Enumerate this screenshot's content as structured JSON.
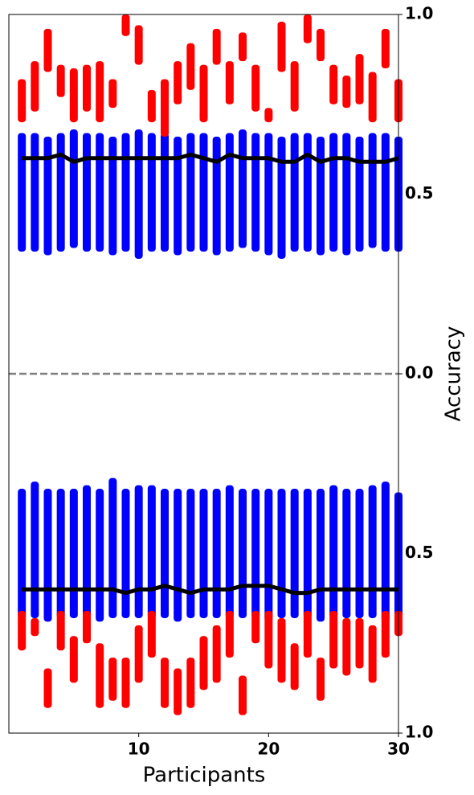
{
  "chart_data": {
    "type": "strip",
    "xlabel": "Participants",
    "ylabel": "Accuracy",
    "x": [
      1,
      2,
      3,
      4,
      5,
      6,
      7,
      8,
      9,
      10,
      11,
      12,
      13,
      14,
      15,
      16,
      17,
      18,
      19,
      20,
      21,
      22,
      23,
      24,
      25,
      26,
      27,
      28,
      29,
      30
    ],
    "xlim": [
      0,
      30
    ],
    "xticks": [
      10,
      20,
      30
    ],
    "ylim": [
      -1,
      1
    ],
    "yticks": [
      {
        "value": 1,
        "label": "1.0"
      },
      {
        "value": 0.5,
        "label": "0.5"
      },
      {
        "value": 0,
        "label": "0.0"
      },
      {
        "value": -0.5,
        "label": "0.5"
      },
      {
        "value": -1,
        "label": "1.0"
      }
    ],
    "zero_line": {
      "value": 0,
      "color": "#808080"
    },
    "series": [
      {
        "color": "#0000ff",
        "low": [
          0.34,
          0.34,
          0.33,
          0.34,
          0.35,
          0.34,
          0.34,
          0.33,
          0.34,
          0.32,
          0.34,
          0.34,
          0.33,
          0.34,
          0.34,
          0.33,
          0.34,
          0.35,
          0.34,
          0.33,
          0.32,
          0.34,
          0.34,
          0.33,
          0.34,
          0.33,
          0.34,
          0.35,
          0.34,
          0.34
        ],
        "high": [
          0.67,
          0.67,
          0.66,
          0.67,
          0.68,
          0.67,
          0.67,
          0.66,
          0.67,
          0.68,
          0.67,
          0.67,
          0.66,
          0.67,
          0.67,
          0.66,
          0.67,
          0.68,
          0.67,
          0.67,
          0.66,
          0.67,
          0.67,
          0.66,
          0.67,
          0.67,
          0.66,
          0.67,
          0.67,
          0.66
        ]
      },
      {
        "color": "#ff0000",
        "low": [
          0.7,
          0.73,
          0.84,
          0.77,
          0.7,
          0.73,
          0.7,
          0.74,
          0.94,
          0.86,
          0.7,
          0.66,
          0.75,
          0.79,
          0.7,
          0.86,
          0.75,
          0.87,
          0.73,
          0.7,
          0.84,
          0.73,
          0.92,
          0.87,
          0.75,
          0.74,
          0.75,
          0.7,
          0.85,
          0.7
        ],
        "high": [
          0.82,
          0.87,
          0.96,
          0.86,
          0.85,
          0.86,
          0.87,
          0.82,
          1.0,
          0.97,
          0.79,
          0.82,
          0.87,
          0.92,
          0.86,
          0.96,
          0.87,
          0.95,
          0.86,
          0.74,
          0.98,
          0.87,
          1.0,
          0.96,
          0.86,
          0.83,
          0.89,
          0.84,
          0.96,
          0.82
        ]
      },
      {
        "color": "#0000ff",
        "low": [
          -0.68,
          -0.68,
          -0.69,
          -0.68,
          -0.68,
          -0.68,
          -0.69,
          -0.68,
          -0.68,
          -0.68,
          -0.68,
          -0.68,
          -0.69,
          -0.68,
          -0.68,
          -0.68,
          -0.68,
          -0.68,
          -0.68,
          -0.69,
          -0.68,
          -0.68,
          -0.68,
          -0.69,
          -0.68,
          -0.68,
          -0.68,
          -0.68,
          -0.69,
          -0.68
        ],
        "high": [
          -0.32,
          -0.3,
          -0.32,
          -0.32,
          -0.32,
          -0.31,
          -0.32,
          -0.29,
          -0.32,
          -0.31,
          -0.31,
          -0.32,
          -0.32,
          -0.32,
          -0.32,
          -0.32,
          -0.31,
          -0.32,
          -0.32,
          -0.32,
          -0.32,
          -0.32,
          -0.32,
          -0.32,
          -0.31,
          -0.32,
          -0.32,
          -0.31,
          -0.3,
          -0.33
        ]
      },
      {
        "color": "#ff0000",
        "low": [
          -0.77,
          -0.73,
          -0.93,
          -0.77,
          -0.86,
          -0.75,
          -0.93,
          -0.91,
          -0.93,
          -0.86,
          -0.79,
          -0.93,
          -0.95,
          -0.93,
          -0.88,
          -0.86,
          -0.79,
          -0.95,
          -0.75,
          -0.82,
          -0.86,
          -0.88,
          -0.79,
          -0.91,
          -0.82,
          -0.84,
          -0.82,
          -0.86,
          -0.79,
          -0.73
        ],
        "high": [
          -0.66,
          -0.68,
          -0.82,
          -0.66,
          -0.73,
          -0.66,
          -0.75,
          -0.79,
          -0.79,
          -0.7,
          -0.66,
          -0.79,
          -0.82,
          -0.79,
          -0.73,
          -0.7,
          -0.66,
          -0.84,
          -0.66,
          -0.66,
          -0.68,
          -0.75,
          -0.66,
          -0.79,
          -0.66,
          -0.68,
          -0.68,
          -0.7,
          -0.66,
          -0.66
        ]
      }
    ],
    "lines": [
      {
        "color": "#000000",
        "values": [
          0.6,
          0.6,
          0.6,
          0.61,
          0.59,
          0.6,
          0.6,
          0.6,
          0.6,
          0.6,
          0.6,
          0.6,
          0.6,
          0.61,
          0.6,
          0.59,
          0.61,
          0.6,
          0.6,
          0.6,
          0.59,
          0.59,
          0.61,
          0.59,
          0.6,
          0.6,
          0.59,
          0.59,
          0.59,
          0.6
        ]
      },
      {
        "color": "#000000",
        "values": [
          -0.6,
          -0.6,
          -0.6,
          -0.6,
          -0.6,
          -0.6,
          -0.6,
          -0.6,
          -0.61,
          -0.6,
          -0.6,
          -0.59,
          -0.6,
          -0.61,
          -0.6,
          -0.6,
          -0.6,
          -0.59,
          -0.59,
          -0.59,
          -0.6,
          -0.61,
          -0.61,
          -0.6,
          -0.6,
          -0.6,
          -0.6,
          -0.6,
          -0.6,
          -0.6
        ]
      }
    ]
  }
}
